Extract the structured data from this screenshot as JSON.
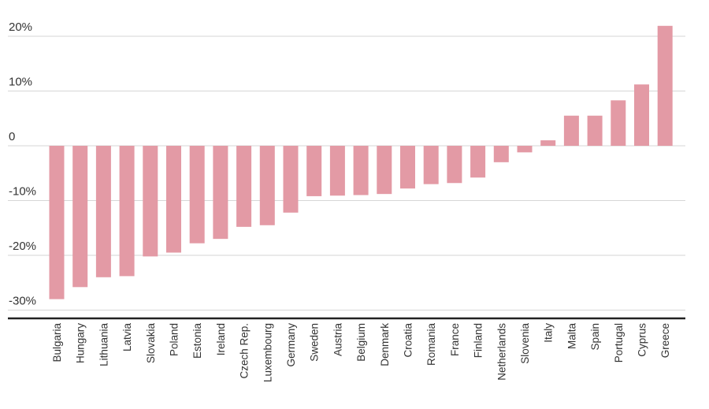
{
  "chart_data": {
    "type": "bar",
    "title": "",
    "xlabel": "",
    "ylabel": "",
    "ylim": [
      -30,
      22
    ],
    "grid": true,
    "bar_color": "#e39aa5",
    "yticks": [
      {
        "value": 20,
        "label": "20%"
      },
      {
        "value": 10,
        "label": "10%"
      },
      {
        "value": 0,
        "label": "0"
      },
      {
        "value": -10,
        "label": "-10%"
      },
      {
        "value": -20,
        "label": "-20%"
      },
      {
        "value": -30,
        "label": "-30%"
      }
    ],
    "categories": [
      "Bulgaria",
      "Hungary",
      "Lithuania",
      "Latvia",
      "Slovakia",
      "Poland",
      "Estonia",
      "Ireland",
      "Czech Rep.",
      "Luxembourg",
      "Germany",
      "Sweden",
      "Austria",
      "Belgium",
      "Denmark",
      "Croatia",
      "Romania",
      "France",
      "Finland",
      "Netherlands",
      "Slovenia",
      "Italy",
      "Malta",
      "Spain",
      "Portugal",
      "Cyprus",
      "Greece"
    ],
    "values": [
      -28.0,
      -25.8,
      -24.0,
      -23.8,
      -20.2,
      -19.5,
      -17.8,
      -17.0,
      -14.8,
      -14.5,
      -12.2,
      -9.2,
      -9.1,
      -9.0,
      -8.8,
      -7.8,
      -7.0,
      -6.8,
      -5.8,
      -3.0,
      -1.2,
      1.0,
      5.5,
      5.5,
      8.3,
      11.2,
      21.9
    ]
  }
}
